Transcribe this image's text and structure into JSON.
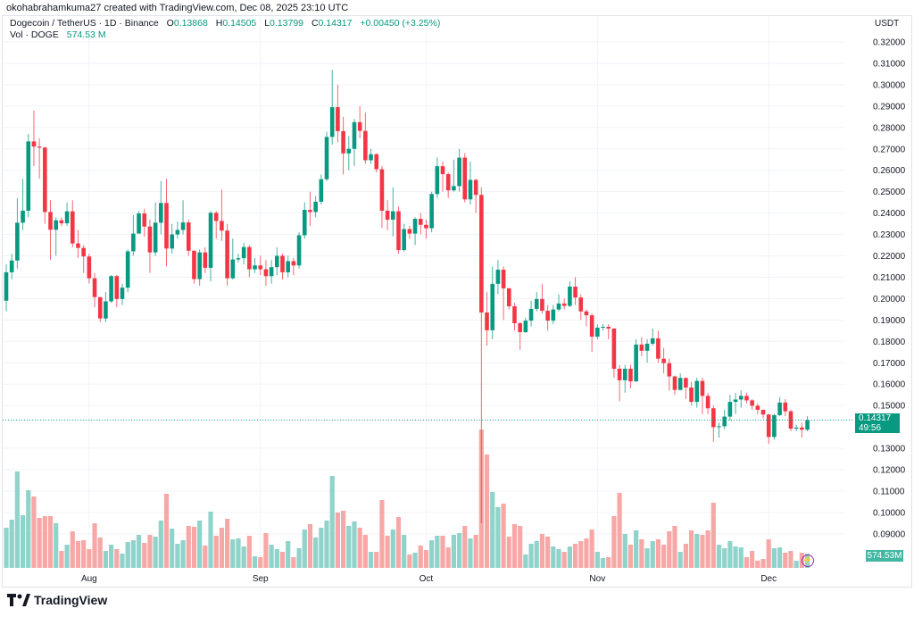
{
  "header": {
    "credit": "okohabrahamkuma27 created with TradingView.com, Dec 08, 2025 23:10 UTC",
    "symbol": "Dogecoin / TetherUS · 1D · Binance",
    "ohlc": {
      "o_label": "O",
      "o": "0.13868",
      "h_label": "H",
      "h": "0.14505",
      "l_label": "L",
      "l": "0.13799",
      "c_label": "C",
      "c": "0.14317",
      "change": "+0.00450 (+3.25%)"
    },
    "volume_label": "Vol · DOGE",
    "volume_value": "574.53 M"
  },
  "axis": {
    "unit": "USDT",
    "price_tag": "0.14317",
    "countdown": "49:56",
    "volume_tag": "574.53M"
  },
  "branding": {
    "logo_text": "TradingView"
  },
  "colors": {
    "up": "#089981",
    "down": "#f23645",
    "vol_up": "#8fd3cb",
    "vol_down": "#f7a8a6",
    "grid": "#f0f3fa"
  },
  "icons": {
    "lightning": "lightning-icon",
    "logo": "tradingview-logo"
  },
  "chart_data": {
    "type": "candlestick",
    "title": "Dogecoin / TetherUS · 1D · Binance",
    "y_ticks": [
      "0.32000",
      "0.31000",
      "0.30000",
      "0.29000",
      "0.28000",
      "0.27000",
      "0.26000",
      "0.25000",
      "0.24000",
      "0.23000",
      "0.22000",
      "0.21000",
      "0.20000",
      "0.19000",
      "0.18000",
      "0.17000",
      "0.16000",
      "0.15000",
      "0.13000",
      "0.12000",
      "0.11000",
      "0.10000",
      "0.09000"
    ],
    "x_ticks": [
      "Aug",
      "Sep",
      "Oct",
      "Nov",
      "Dec"
    ],
    "ylim": [
      0.09,
      0.32
    ],
    "grid": true,
    "last_price": 0.14317,
    "first_open": 0.199,
    "close": [
      0.2123,
      0.2178,
      0.2355,
      0.2411,
      0.2735,
      0.2711,
      0.2706,
      0.2405,
      0.2322,
      0.2366,
      0.2352,
      0.2408,
      0.2258,
      0.2237,
      0.2197,
      0.2095,
      0.2007,
      0.1907,
      0.1987,
      0.2105,
      0.1998,
      0.2051,
      0.2221,
      0.2304,
      0.2398,
      0.2337,
      0.2216,
      0.2355,
      0.2447,
      0.2234,
      0.23,
      0.2321,
      0.2356,
      0.2224,
      0.2091,
      0.2216,
      0.2144,
      0.2401,
      0.2363,
      0.2318,
      0.2095,
      0.2183,
      0.2189,
      0.2241,
      0.2137,
      0.2155,
      0.2137,
      0.2105,
      0.2147,
      0.22,
      0.2123,
      0.2175,
      0.2155,
      0.2296,
      0.2415,
      0.2405,
      0.2453,
      0.2558,
      0.2756,
      0.2895,
      0.2783,
      0.2679,
      0.27,
      0.2825,
      0.2784,
      0.2647,
      0.2675,
      0.2605,
      0.2411,
      0.2369,
      0.2408,
      0.2227,
      0.2325,
      0.2304,
      0.2373,
      0.2345,
      0.2329,
      0.2489,
      0.2619,
      0.2582,
      0.2506,
      0.2526,
      0.2659,
      0.2464,
      0.2555,
      0.2485,
      0.1935,
      0.1852,
      0.2069,
      0.2135,
      0.2048,
      0.1964,
      0.1885,
      0.1843,
      0.1897,
      0.1952,
      0.1998,
      0.1943,
      0.1897,
      0.1949,
      0.1977,
      0.1966,
      0.2056,
      0.2005,
      0.194,
      0.1922,
      0.1822,
      0.1864,
      0.1868,
      0.186,
      0.1672,
      0.1618,
      0.1672,
      0.1613,
      0.1785,
      0.1756,
      0.1789,
      0.1814,
      0.1719,
      0.1698,
      0.1636,
      0.1573,
      0.1629,
      0.1584,
      0.1517,
      0.1615,
      0.1545,
      0.1487,
      0.1399,
      0.1403,
      0.1448,
      0.1517,
      0.1528,
      0.1545,
      0.1524,
      0.1499,
      0.148,
      0.1458,
      0.1353,
      0.1455,
      0.1514,
      0.1473,
      0.1392,
      0.1397,
      0.13868,
      0.14317
    ],
    "high": [
      0.216,
      0.221,
      0.247,
      0.256,
      0.277,
      0.288,
      0.275,
      0.271,
      0.246,
      0.238,
      0.238,
      0.245,
      0.246,
      0.232,
      0.225,
      0.221,
      0.212,
      0.2,
      0.203,
      0.211,
      0.211,
      0.207,
      0.223,
      0.239,
      0.241,
      0.242,
      0.237,
      0.245,
      0.255,
      0.256,
      0.235,
      0.236,
      0.246,
      0.237,
      0.216,
      0.223,
      0.224,
      0.241,
      0.241,
      0.251,
      0.235,
      0.228,
      0.221,
      0.226,
      0.225,
      0.219,
      0.22,
      0.218,
      0.218,
      0.224,
      0.221,
      0.22,
      0.219,
      0.231,
      0.245,
      0.25,
      0.248,
      0.258,
      0.278,
      0.307,
      0.3,
      0.285,
      0.276,
      0.284,
      0.29,
      0.287,
      0.27,
      0.268,
      0.262,
      0.246,
      0.252,
      0.243,
      0.235,
      0.234,
      0.238,
      0.24,
      0.237,
      0.25,
      0.266,
      0.264,
      0.259,
      0.265,
      0.27,
      0.268,
      0.264,
      0.256,
      0.252,
      0.203,
      0.215,
      0.218,
      0.215,
      0.205,
      0.198,
      0.189,
      0.191,
      0.199,
      0.203,
      0.207,
      0.197,
      0.197,
      0.202,
      0.2,
      0.208,
      0.21,
      0.202,
      0.195,
      0.193,
      0.188,
      0.188,
      0.188,
      0.186,
      0.169,
      0.169,
      0.169,
      0.181,
      0.182,
      0.181,
      0.186,
      0.185,
      0.177,
      0.172,
      0.164,
      0.165,
      0.163,
      0.161,
      0.163,
      0.163,
      0.156,
      0.15,
      0.142,
      0.148,
      0.155,
      0.156,
      0.157,
      0.156,
      0.153,
      0.151,
      0.148,
      0.146,
      0.146,
      0.154,
      0.153,
      0.148,
      0.141,
      0.142,
      0.14505
    ],
    "low": [
      0.194,
      0.209,
      0.214,
      0.232,
      0.238,
      0.262,
      0.256,
      0.235,
      0.218,
      0.22,
      0.234,
      0.234,
      0.224,
      0.219,
      0.212,
      0.207,
      0.196,
      0.189,
      0.189,
      0.198,
      0.196,
      0.197,
      0.203,
      0.22,
      0.231,
      0.229,
      0.212,
      0.22,
      0.23,
      0.215,
      0.221,
      0.228,
      0.23,
      0.22,
      0.207,
      0.206,
      0.212,
      0.208,
      0.228,
      0.227,
      0.206,
      0.209,
      0.217,
      0.216,
      0.21,
      0.212,
      0.211,
      0.206,
      0.207,
      0.211,
      0.209,
      0.21,
      0.211,
      0.214,
      0.228,
      0.234,
      0.238,
      0.244,
      0.255,
      0.272,
      0.273,
      0.258,
      0.26,
      0.262,
      0.275,
      0.263,
      0.263,
      0.259,
      0.233,
      0.232,
      0.229,
      0.221,
      0.222,
      0.228,
      0.225,
      0.23,
      0.228,
      0.231,
      0.247,
      0.25,
      0.247,
      0.25,
      0.25,
      0.245,
      0.244,
      0.24,
      0.095,
      0.178,
      0.181,
      0.202,
      0.19,
      0.195,
      0.185,
      0.176,
      0.184,
      0.187,
      0.194,
      0.193,
      0.185,
      0.188,
      0.194,
      0.195,
      0.196,
      0.197,
      0.19,
      0.187,
      0.175,
      0.181,
      0.185,
      0.181,
      0.163,
      0.152,
      0.156,
      0.158,
      0.161,
      0.173,
      0.17,
      0.178,
      0.17,
      0.165,
      0.157,
      0.155,
      0.157,
      0.153,
      0.15,
      0.149,
      0.146,
      0.146,
      0.133,
      0.135,
      0.139,
      0.143,
      0.146,
      0.149,
      0.151,
      0.148,
      0.146,
      0.144,
      0.132,
      0.134,
      0.145,
      0.145,
      0.138,
      0.138,
      0.135,
      0.13799
    ],
    "volume_millions": [
      1620,
      1944,
      3888,
      2124,
      3132,
      2880,
      2016,
      2088,
      2088,
      1800,
      684,
      936,
      1476,
      1080,
      1116,
      756,
      1800,
      1224,
      684,
      936,
      756,
      576,
      1044,
      1116,
      1332,
      1008,
      1332,
      1260,
      1908,
      2988,
      1584,
      972,
      1116,
      1692,
      1656,
      1908,
      900,
      2268,
      1296,
      1620,
      1980,
      1152,
      1188,
      864,
      1296,
      468,
      432,
      1404,
      936,
      756,
      648,
      1080,
      432,
      792,
      1548,
      1764,
      1224,
      1620,
      1908,
      3708,
      2232,
      2304,
      1692,
      1872,
      1620,
      1332,
      648,
      648,
      2736,
      1296,
      1548,
      2052,
      1332,
      540,
      612,
      900,
      720,
      1116,
      1296,
      1296,
      828,
      1332,
      1404,
      1692,
      1188,
      1332,
      5580,
      4572,
      3060,
      2448,
      2592,
      1260,
      1764,
      1692,
      540,
      972,
      1080,
      1368,
      1260,
      864,
      756,
      648,
      864,
      972,
      1080,
      1188,
      1548,
      648,
      396,
      432,
      2088,
      3024,
      1368,
      936,
      1512,
      1152,
      792,
      1080,
      1152,
      936,
      1476,
      1692,
      648,
      972,
      1512,
      1368,
      1332,
      1512,
      2628,
      936,
      792,
      1080,
      864,
      828,
      432,
      684,
      288,
      360,
      1152,
      792,
      828,
      612,
      684,
      288,
      612,
      574.53
    ]
  }
}
